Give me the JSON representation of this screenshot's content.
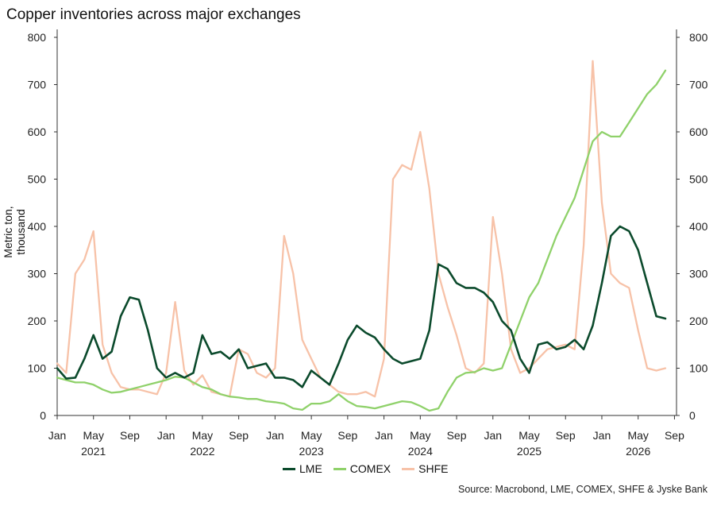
{
  "chart_data": {
    "type": "line",
    "title": "Copper inventories across major exchanges",
    "ylabel": "Metric ton, thousand",
    "ylim": [
      0,
      800
    ],
    "y_ticks": [
      0,
      100,
      200,
      300,
      400,
      500,
      600,
      700,
      800
    ],
    "x_ticks": [
      "Jan",
      "May",
      "Sep",
      "Jan",
      "May",
      "Sep",
      "Jan",
      "May",
      "Sep",
      "Jan",
      "May",
      "Sep",
      "Jan",
      "May",
      "Sep",
      "Jan",
      "May",
      "Sep"
    ],
    "x_years": [
      "2021",
      "2022",
      "2023",
      "2024",
      "2025",
      "2026"
    ],
    "source": "Source: Macrobond, LME, COMEX, SHFE & Jyske Bank",
    "legend_position": "bottom-center",
    "series": [
      {
        "name": "LME",
        "color": "#0b4a2c",
        "x": [
          "2021-01",
          "2021-02",
          "2021-03",
          "2021-04",
          "2021-05",
          "2021-06",
          "2021-07",
          "2021-08",
          "2021-09",
          "2021-10",
          "2021-11",
          "2021-12",
          "2022-01",
          "2022-02",
          "2022-03",
          "2022-04",
          "2022-05",
          "2022-06",
          "2022-07",
          "2022-08",
          "2022-09",
          "2022-10",
          "2022-11",
          "2022-12",
          "2023-01",
          "2023-02",
          "2023-03",
          "2023-04",
          "2023-05",
          "2023-06",
          "2023-07",
          "2023-08",
          "2023-09",
          "2023-10",
          "2023-11",
          "2023-12",
          "2024-01",
          "2024-02",
          "2024-03",
          "2024-04",
          "2024-05",
          "2024-06",
          "2024-07",
          "2024-08",
          "2024-09",
          "2024-10",
          "2024-11",
          "2024-12",
          "2025-01",
          "2025-02",
          "2025-03",
          "2025-04",
          "2025-05",
          "2025-06",
          "2025-07",
          "2025-08",
          "2025-09",
          "2025-10",
          "2025-11",
          "2025-12",
          "2026-01",
          "2026-02",
          "2026-03",
          "2026-04",
          "2026-05",
          "2026-06",
          "2026-07",
          "2026-08"
        ],
        "y": [
          100,
          78,
          80,
          120,
          170,
          120,
          135,
          210,
          250,
          245,
          180,
          100,
          80,
          90,
          80,
          90,
          170,
          130,
          135,
          120,
          140,
          100,
          105,
          110,
          80,
          80,
          75,
          60,
          95,
          80,
          65,
          110,
          160,
          190,
          175,
          165,
          140,
          120,
          110,
          115,
          120,
          180,
          320,
          310,
          280,
          270,
          270,
          260,
          240,
          200,
          180,
          120,
          90,
          150,
          155,
          140,
          145,
          160,
          140,
          190,
          280,
          380,
          400,
          390,
          350,
          280,
          210,
          205
        ]
      },
      {
        "name": "COMEX",
        "color": "#8fd16a",
        "x": [
          "2021-01",
          "2021-02",
          "2021-03",
          "2021-04",
          "2021-05",
          "2021-06",
          "2021-07",
          "2021-08",
          "2021-09",
          "2021-10",
          "2021-11",
          "2021-12",
          "2022-01",
          "2022-02",
          "2022-03",
          "2022-04",
          "2022-05",
          "2022-06",
          "2022-07",
          "2022-08",
          "2022-09",
          "2022-10",
          "2022-11",
          "2022-12",
          "2023-01",
          "2023-02",
          "2023-03",
          "2023-04",
          "2023-05",
          "2023-06",
          "2023-07",
          "2023-08",
          "2023-09",
          "2023-10",
          "2023-11",
          "2023-12",
          "2024-01",
          "2024-02",
          "2024-03",
          "2024-04",
          "2024-05",
          "2024-06",
          "2024-07",
          "2024-08",
          "2024-09",
          "2024-10",
          "2024-11",
          "2024-12",
          "2025-01",
          "2025-02",
          "2025-03",
          "2025-04",
          "2025-05",
          "2025-06",
          "2025-07",
          "2025-08",
          "2025-09",
          "2025-10",
          "2025-11",
          "2025-12",
          "2026-01",
          "2026-02",
          "2026-03",
          "2026-04",
          "2026-05",
          "2026-06",
          "2026-07",
          "2026-08"
        ],
        "y": [
          80,
          75,
          70,
          70,
          65,
          55,
          48,
          50,
          55,
          60,
          65,
          70,
          75,
          82,
          80,
          70,
          60,
          55,
          45,
          40,
          38,
          35,
          35,
          30,
          28,
          25,
          15,
          12,
          25,
          25,
          30,
          45,
          30,
          20,
          18,
          15,
          20,
          25,
          30,
          28,
          20,
          10,
          15,
          50,
          80,
          90,
          92,
          100,
          95,
          100,
          150,
          200,
          250,
          280,
          330,
          380,
          420,
          460,
          520,
          580,
          600,
          590,
          590,
          620,
          650,
          680,
          700,
          730
        ]
      },
      {
        "name": "SHFE",
        "color": "#f7c2a8",
        "x": [
          "2021-01",
          "2021-02",
          "2021-03",
          "2021-04",
          "2021-05",
          "2021-06",
          "2021-07",
          "2021-08",
          "2021-09",
          "2021-10",
          "2021-11",
          "2021-12",
          "2022-01",
          "2022-02",
          "2022-03",
          "2022-04",
          "2022-05",
          "2022-06",
          "2022-07",
          "2022-08",
          "2022-09",
          "2022-10",
          "2022-11",
          "2022-12",
          "2023-01",
          "2023-02",
          "2023-03",
          "2023-04",
          "2023-05",
          "2023-06",
          "2023-07",
          "2023-08",
          "2023-09",
          "2023-10",
          "2023-11",
          "2023-12",
          "2024-01",
          "2024-02",
          "2024-03",
          "2024-04",
          "2024-05",
          "2024-06",
          "2024-07",
          "2024-08",
          "2024-09",
          "2024-10",
          "2024-11",
          "2024-12",
          "2025-01",
          "2025-02",
          "2025-03",
          "2025-04",
          "2025-05",
          "2025-06",
          "2025-07",
          "2025-08",
          "2025-09",
          "2025-10",
          "2025-11",
          "2025-12",
          "2026-01",
          "2026-02",
          "2026-03",
          "2026-04",
          "2026-05",
          "2026-06",
          "2026-07",
          "2026-08"
        ],
        "y": [
          110,
          90,
          300,
          330,
          390,
          150,
          90,
          60,
          55,
          55,
          50,
          45,
          90,
          240,
          95,
          65,
          85,
          50,
          45,
          40,
          140,
          130,
          90,
          80,
          100,
          380,
          300,
          160,
          120,
          80,
          65,
          50,
          45,
          45,
          50,
          40,
          120,
          500,
          530,
          520,
          600,
          480,
          300,
          230,
          170,
          100,
          90,
          110,
          420,
          300,
          140,
          90,
          100,
          120,
          140,
          145,
          150,
          140,
          360,
          750,
          450,
          300,
          280,
          270,
          180,
          100,
          95,
          100
        ]
      }
    ]
  }
}
